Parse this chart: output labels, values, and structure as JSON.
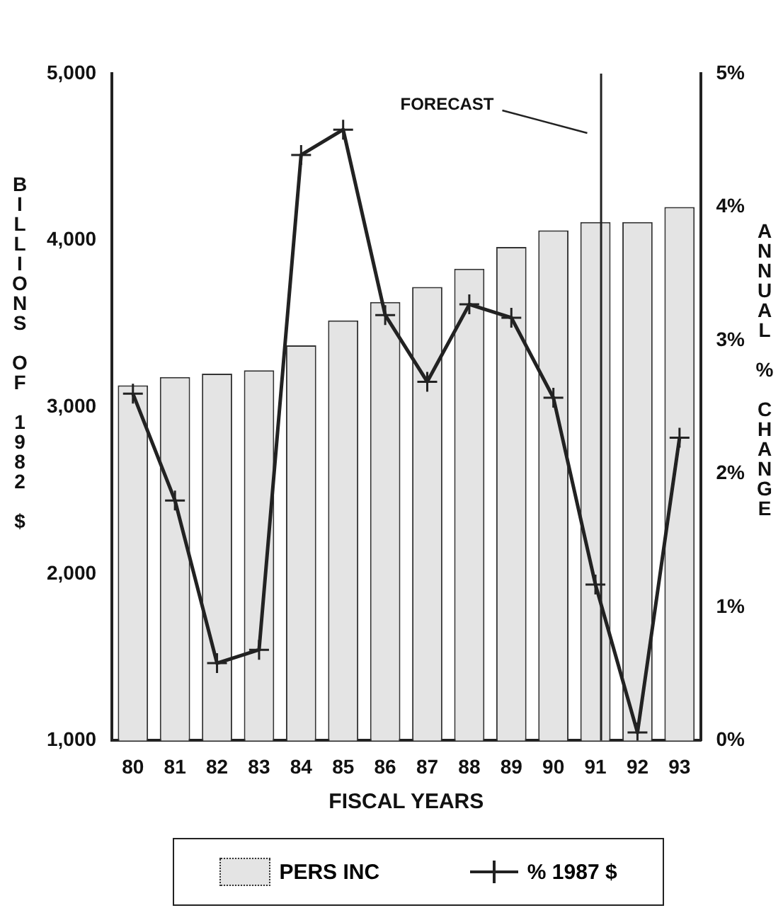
{
  "chart_data": {
    "type": "bar",
    "xlabel": "FISCAL YEARS",
    "ylabel": "BILLIONS OF 1982 $",
    "y2label": "ANNUAL % CHANGE",
    "categories": [
      "80",
      "81",
      "82",
      "83",
      "84",
      "85",
      "86",
      "87",
      "88",
      "89",
      "90",
      "91",
      "92",
      "93"
    ],
    "series": [
      {
        "name": "PERS INC",
        "color": "#e4e4e4",
        "values": [
          3130,
          3180,
          3200,
          3220,
          3370,
          3520,
          3630,
          3720,
          3830,
          3960,
          4060,
          4110,
          4110,
          4200
        ]
      },
      {
        "name": "% 1987 $",
        "type": "line",
        "axis": "y2",
        "color": "#222222",
        "marker": "cross",
        "values": [
          2.6,
          1.8,
          0.58,
          0.68,
          4.39,
          4.58,
          3.19,
          2.69,
          3.27,
          3.17,
          2.57,
          1.17,
          0.06,
          2.27
        ]
      }
    ],
    "ylim": [
      1000,
      5000
    ],
    "yticks": [
      {
        "value": 1000,
        "label": "1,000"
      },
      {
        "value": 2000,
        "label": "2,000"
      },
      {
        "value": 3000,
        "label": "3,000"
      },
      {
        "value": 4000,
        "label": "4,000"
      },
      {
        "value": 5000,
        "label": "5,000"
      }
    ],
    "y2lim": [
      0,
      5
    ],
    "y2ticks": [
      {
        "value": 0,
        "label": "0%"
      },
      {
        "value": 1,
        "label": "1%"
      },
      {
        "value": 2,
        "label": "2%"
      },
      {
        "value": 3,
        "label": "3%"
      },
      {
        "value": 4,
        "label": "4%"
      },
      {
        "value": 5,
        "label": "5%"
      }
    ],
    "ref_lines": [
      {
        "axis": "x",
        "value": "91",
        "color": "#222222"
      }
    ],
    "annotations": [
      "FORECAST"
    ],
    "grid": false,
    "legend": "bottom"
  }
}
